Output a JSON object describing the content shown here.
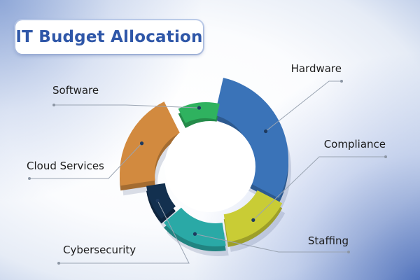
{
  "title": "IT Budget Allocation",
  "chart_data": {
    "type": "pie",
    "variant": "donut",
    "title": "IT Budget Allocation",
    "categories": [
      "Hardware",
      "Compliance",
      "Staffing",
      "Cybersecurity",
      "Cloud Services",
      "Software"
    ],
    "values": [
      29,
      15,
      16,
      9,
      20,
      11
    ],
    "colors": [
      "#3a73b8",
      "#c9cc35",
      "#2aa9a6",
      "#13304f",
      "#d28a3f",
      "#2fb25f"
    ],
    "legend": "none"
  }
}
